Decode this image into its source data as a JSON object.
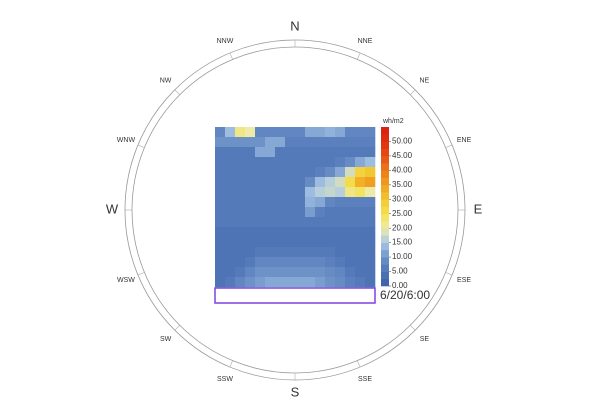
{
  "chart_data": {
    "type": "heatmap",
    "unit_label": "wh/m2",
    "timestamp": "6/20/6:00",
    "directions": [
      "N",
      "NNE",
      "NE",
      "ENE",
      "E",
      "ESE",
      "SE",
      "SSE",
      "S",
      "SSW",
      "SW",
      "WSW",
      "W",
      "WNW",
      "NW",
      "NNW"
    ],
    "z": [
      [
        8,
        14,
        22,
        20,
        8,
        8,
        8,
        8,
        8,
        12,
        12,
        13,
        12,
        8,
        8,
        8
      ],
      [
        10,
        10,
        10,
        10,
        10,
        12,
        12,
        7,
        7,
        7,
        7,
        7,
        7,
        7,
        7,
        7
      ],
      [
        6,
        6,
        6,
        6,
        12,
        12,
        6,
        6,
        6,
        6,
        6,
        6,
        6,
        6,
        6,
        6
      ],
      [
        6,
        6,
        6,
        6,
        6,
        6,
        6,
        6,
        6,
        6,
        6,
        6,
        7,
        9,
        12,
        14
      ],
      [
        6,
        6,
        6,
        6,
        6,
        6,
        6,
        6,
        6,
        6,
        7,
        9,
        12,
        18,
        28,
        30
      ],
      [
        6,
        6,
        6,
        6,
        6,
        6,
        6,
        6,
        6,
        9,
        14,
        16,
        18,
        26,
        33,
        35
      ],
      [
        6,
        6,
        6,
        6,
        6,
        6,
        6,
        6,
        6,
        14,
        16,
        17,
        16,
        22,
        24,
        20
      ],
      [
        6,
        6,
        6,
        6,
        6,
        6,
        6,
        6,
        6,
        13,
        12,
        8,
        7,
        7,
        7,
        7
      ],
      [
        6,
        6,
        6,
        6,
        6,
        6,
        6,
        6,
        6,
        11,
        7,
        6,
        6,
        6,
        6,
        6
      ],
      [
        6,
        6,
        6,
        6,
        6,
        6,
        6,
        6,
        6,
        6,
        6,
        6,
        6,
        6,
        6,
        6
      ],
      [
        5,
        5,
        5,
        5,
        5,
        5,
        5,
        5,
        5,
        5,
        5,
        5,
        5,
        5,
        5,
        5
      ],
      [
        5,
        5,
        5,
        5,
        5,
        5,
        5,
        5,
        5,
        5,
        5,
        5,
        5,
        5,
        5,
        5
      ],
      [
        5,
        5,
        5,
        5,
        6,
        6,
        6,
        6,
        6,
        6,
        6,
        6,
        5,
        5,
        5,
        5
      ],
      [
        5,
        5,
        5,
        6,
        8,
        8,
        8,
        8,
        8,
        8,
        8,
        7,
        6,
        5,
        5,
        5
      ],
      [
        5,
        5,
        6,
        8,
        10,
        10,
        10,
        10,
        10,
        10,
        10,
        9,
        8,
        6,
        5,
        5
      ],
      [
        5,
        6,
        8,
        10,
        11,
        12,
        12,
        12,
        12,
        12,
        11,
        10,
        9,
        7,
        6,
        5
      ]
    ],
    "zlim": [
      0,
      55
    ],
    "zticks": [
      {
        "value": 0,
        "label": "0.00"
      },
      {
        "value": 5,
        "label": "5.00"
      },
      {
        "value": 10,
        "label": "10.00"
      },
      {
        "value": 15,
        "label": "15.00"
      },
      {
        "value": 20,
        "label": "20.00"
      },
      {
        "value": 25,
        "label": "25.00"
      },
      {
        "value": 30,
        "label": "30.00"
      },
      {
        "value": 35,
        "label": "35.00"
      },
      {
        "value": 40,
        "label": "40.00"
      },
      {
        "value": 45,
        "label": "45.00"
      },
      {
        "value": 50,
        "label": "50.00"
      }
    ],
    "colors": [
      "#3d5fa8",
      "#4f74b6",
      "#6d92c8",
      "#a9c8e6",
      "#eeeaa8",
      "#f5e050",
      "#f2c830",
      "#f0a020",
      "#ec7a18",
      "#e85012",
      "#e03010",
      "#d82010"
    ]
  }
}
